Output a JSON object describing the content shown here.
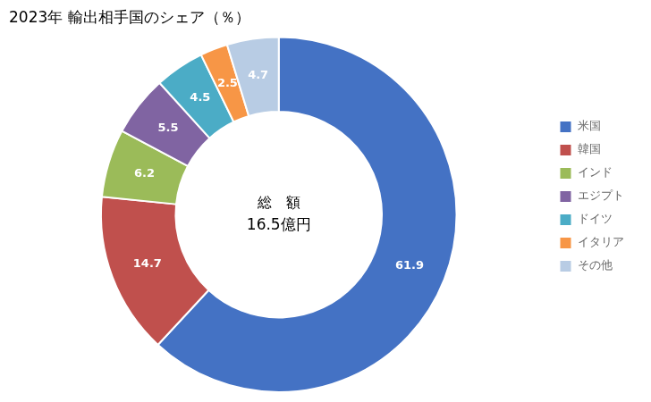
{
  "chart_data": {
    "type": "doughnut",
    "title": "2023年 輸出相手国のシェア（％）",
    "categories": [
      "米国",
      "韓国",
      "インド",
      "エジプト",
      "ドイツ",
      "イタリア",
      "その他"
    ],
    "values": [
      61.9,
      14.7,
      6.2,
      5.5,
      4.5,
      2.5,
      4.7
    ],
    "colors": [
      "#4472C4",
      "#C0504D",
      "#9BBB59",
      "#8064A2",
      "#4BACC6",
      "#F79646",
      "#B8CCE4"
    ],
    "annotations": [
      "総　額",
      "16.5億円"
    ],
    "data_labels": true,
    "legend": "right"
  }
}
